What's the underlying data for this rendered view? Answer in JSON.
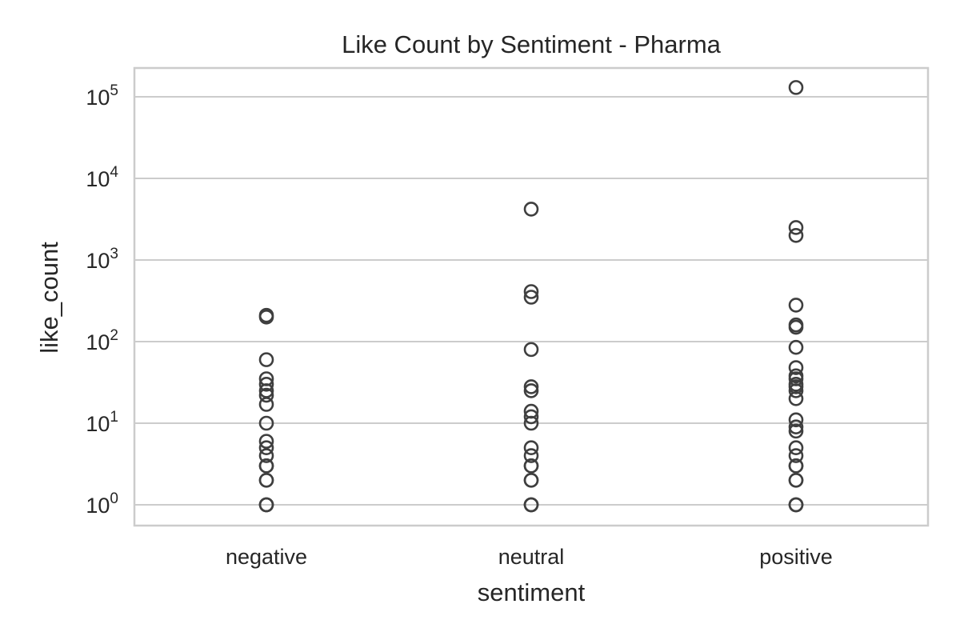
{
  "chart_data": {
    "type": "scatter",
    "title": "Like Count by Sentiment - Pharma",
    "xlabel": "sentiment",
    "ylabel": "like_count",
    "y_scale": "log",
    "ylim": [
      0.56,
      230000
    ],
    "grid": true,
    "categories": [
      "negative",
      "neutral",
      "positive"
    ],
    "y_ticks": [
      {
        "base": "10",
        "exp": "0",
        "value": 1
      },
      {
        "base": "10",
        "exp": "1",
        "value": 10
      },
      {
        "base": "10",
        "exp": "2",
        "value": 100
      },
      {
        "base": "10",
        "exp": "3",
        "value": 1000
      },
      {
        "base": "10",
        "exp": "4",
        "value": 10000
      },
      {
        "base": "10",
        "exp": "5",
        "value": 100000
      }
    ],
    "marker_color": "#3f3f3f",
    "series": [
      {
        "category": "negative",
        "values": [
          1,
          1,
          1,
          2,
          2,
          3,
          3,
          4,
          5,
          6,
          10,
          17,
          22,
          25,
          30,
          35,
          60,
          200,
          210
        ]
      },
      {
        "category": "neutral",
        "values": [
          1,
          1,
          1,
          2,
          2,
          3,
          3,
          4,
          5,
          10,
          12,
          14,
          25,
          28,
          80,
          350,
          410,
          4200
        ]
      },
      {
        "category": "positive",
        "values": [
          1,
          1,
          1,
          2,
          2,
          3,
          3,
          4,
          5,
          8,
          9,
          11,
          20,
          25,
          28,
          30,
          35,
          38,
          48,
          85,
          150,
          160,
          280,
          2000,
          2500,
          130000
        ]
      }
    ]
  }
}
